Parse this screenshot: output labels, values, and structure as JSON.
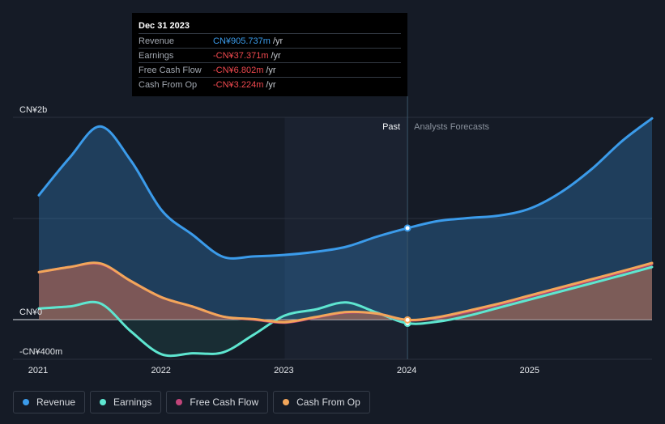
{
  "tooltip": {
    "date": "Dec 31 2023",
    "rows": [
      {
        "label": "Revenue",
        "value": "CN¥905.737m",
        "unit": "/yr",
        "color": "#3b9bea"
      },
      {
        "label": "Earnings",
        "value": "-CN¥37.371m",
        "unit": "/yr",
        "color": "#f0494f"
      },
      {
        "label": "Free Cash Flow",
        "value": "-CN¥6.802m",
        "unit": "/yr",
        "color": "#f0494f"
      },
      {
        "label": "Cash From Op",
        "value": "-CN¥3.224m",
        "unit": "/yr",
        "color": "#f0494f"
      }
    ]
  },
  "labels": {
    "past": "Past",
    "forecast": "Analysts Forecasts"
  },
  "chart_data": {
    "type": "line",
    "xlim": [
      2021,
      2025.99
    ],
    "ylim": [
      -400,
      2000
    ],
    "y_tick_labels": [
      {
        "value": 2000,
        "label": "CN¥2b"
      },
      {
        "value": 0,
        "label": "CN¥0"
      },
      {
        "value": -400,
        "label": "-CN¥400m"
      }
    ],
    "x_ticks": [
      {
        "value": 2021,
        "label": "2021"
      },
      {
        "value": 2022,
        "label": "2022"
      },
      {
        "value": 2023,
        "label": "2023"
      },
      {
        "value": 2024,
        "label": "2024"
      },
      {
        "value": 2025,
        "label": "2025"
      }
    ],
    "divider_x": 2024,
    "past_shade_start": 2023,
    "series": [
      {
        "name": "Revenue",
        "color": "#3b9bea",
        "points": [
          [
            2021,
            1230
          ],
          [
            2021.25,
            1600
          ],
          [
            2021.5,
            1910
          ],
          [
            2021.75,
            1570
          ],
          [
            2022,
            1080
          ],
          [
            2022.25,
            840
          ],
          [
            2022.5,
            620
          ],
          [
            2022.75,
            625
          ],
          [
            2023,
            640
          ],
          [
            2023.25,
            670
          ],
          [
            2023.5,
            720
          ],
          [
            2023.75,
            820
          ],
          [
            2024,
            905
          ],
          [
            2024.25,
            975
          ],
          [
            2024.5,
            1005
          ],
          [
            2024.75,
            1030
          ],
          [
            2025,
            1100
          ],
          [
            2025.25,
            1260
          ],
          [
            2025.5,
            1490
          ],
          [
            2025.75,
            1770
          ],
          [
            2025.99,
            1990
          ]
        ]
      },
      {
        "name": "Earnings",
        "color": "#5ee6d0",
        "points": [
          [
            2021,
            110
          ],
          [
            2021.25,
            130
          ],
          [
            2021.5,
            160
          ],
          [
            2021.75,
            -120
          ],
          [
            2022,
            -350
          ],
          [
            2022.25,
            -340
          ],
          [
            2022.5,
            -330
          ],
          [
            2022.75,
            -150
          ],
          [
            2023,
            40
          ],
          [
            2023.25,
            100
          ],
          [
            2023.5,
            170
          ],
          [
            2023.75,
            70
          ],
          [
            2024,
            -37
          ],
          [
            2024.25,
            -20
          ],
          [
            2024.5,
            40
          ],
          [
            2024.75,
            120
          ],
          [
            2025,
            200
          ],
          [
            2025.25,
            280
          ],
          [
            2025.5,
            360
          ],
          [
            2025.75,
            440
          ],
          [
            2025.99,
            520
          ]
        ]
      },
      {
        "name": "Free Cash Flow",
        "color": "#c2457a",
        "points": [
          [
            2021,
            470
          ],
          [
            2021.25,
            520
          ],
          [
            2021.5,
            550
          ],
          [
            2021.75,
            380
          ],
          [
            2022,
            220
          ],
          [
            2022.25,
            130
          ],
          [
            2022.5,
            30
          ],
          [
            2022.75,
            0
          ],
          [
            2023,
            -30
          ],
          [
            2023.25,
            20
          ],
          [
            2023.5,
            70
          ],
          [
            2023.75,
            60
          ],
          [
            2024,
            -7
          ],
          [
            2024.25,
            20
          ],
          [
            2024.5,
            80
          ],
          [
            2024.75,
            150
          ],
          [
            2025,
            230
          ],
          [
            2025.25,
            310
          ],
          [
            2025.5,
            390
          ],
          [
            2025.75,
            470
          ],
          [
            2025.99,
            550
          ]
        ]
      },
      {
        "name": "Cash From Op",
        "color": "#f2a65a",
        "points": [
          [
            2021,
            470
          ],
          [
            2021.25,
            520
          ],
          [
            2021.5,
            555
          ],
          [
            2021.75,
            380
          ],
          [
            2022,
            220
          ],
          [
            2022.25,
            130
          ],
          [
            2022.5,
            30
          ],
          [
            2022.75,
            5
          ],
          [
            2023,
            -25
          ],
          [
            2023.25,
            25
          ],
          [
            2023.5,
            75
          ],
          [
            2023.75,
            60
          ],
          [
            2024,
            -3
          ],
          [
            2024.25,
            25
          ],
          [
            2024.5,
            90
          ],
          [
            2024.75,
            160
          ],
          [
            2025,
            240
          ],
          [
            2025.25,
            320
          ],
          [
            2025.5,
            400
          ],
          [
            2025.75,
            480
          ],
          [
            2025.99,
            560
          ]
        ]
      }
    ],
    "legend": [
      {
        "name": "Revenue",
        "color": "#3b9bea"
      },
      {
        "name": "Earnings",
        "color": "#5ee6d0"
      },
      {
        "name": "Free Cash Flow",
        "color": "#c2457a"
      },
      {
        "name": "Cash From Op",
        "color": "#f2a65a"
      }
    ]
  }
}
